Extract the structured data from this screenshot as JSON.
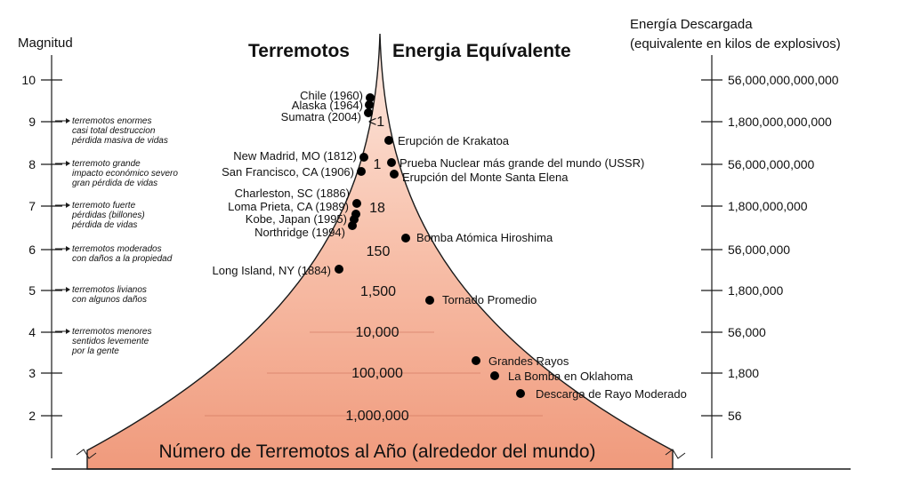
{
  "header": {
    "left_axis_label": "Magnitud",
    "title_left": "Terremotos",
    "title_right": "Energia Equívalente",
    "right_axis_label_line1": "Energía Descargada",
    "right_axis_label_line2": "(equivalente en kilos de explosivos)"
  },
  "magnitudes": [
    "10",
    "9",
    "8",
    "7",
    "6",
    "5",
    "4",
    "3",
    "2"
  ],
  "energy_ticks": [
    "56,000,000,000,000",
    "1,800,000,000,000",
    "56,000,000,000",
    "1,800,000,000",
    "56,000,000",
    "1,800,000",
    "56,000",
    "1,800",
    "56"
  ],
  "descriptions": [
    [
      "terremotos enormes",
      "casi total destruccion",
      "pérdida masiva de vidas"
    ],
    [
      "terremoto grande",
      "impacto económico severo",
      "gran pérdida de vidas"
    ],
    [
      "terremoto fuerte",
      "pérdidas (billones)",
      "pérdida de vidas"
    ],
    [
      "terremotos moderados",
      "con daños a la propiedad"
    ],
    [
      "terremotos livianos",
      "con algunos daños"
    ],
    [
      "terremotos menores",
      "sentidos levemente",
      "por la gente"
    ]
  ],
  "earthquakes": [
    "Chile (1960)",
    "Alaska (1964)",
    "Sumatra (2004)",
    "New Madrid, MO (1812)",
    "San Francisco, CA (1906)",
    "Charleston, SC (1886)",
    "Loma Prieta, CA (1989)",
    "Kobe, Japan (1995)",
    "Northridge (1994)",
    "Long Island, NY (1884)"
  ],
  "energy_events": [
    "Erupción de Krakatoa",
    "Prueba Nuclear más grande del mundo (USSR)",
    "Erupción del Monte Santa Elena",
    "Bomba Atómica Hiroshima",
    "Tornado Promedio",
    "Grandes Rayos",
    "La Bomba en Oklahoma",
    "Descarga de Rayo Moderado"
  ],
  "annual_counts": [
    "<1",
    "1",
    "18",
    "150",
    "1,500",
    "10,000",
    "100,000",
    "1,000,000"
  ],
  "footer": "Número de Terremotos al Año  (alrededor del mundo)",
  "colors": {
    "fill_top": "#fdebe3",
    "fill_bottom": "#f09a7c",
    "outline": "#1a1a1a"
  }
}
